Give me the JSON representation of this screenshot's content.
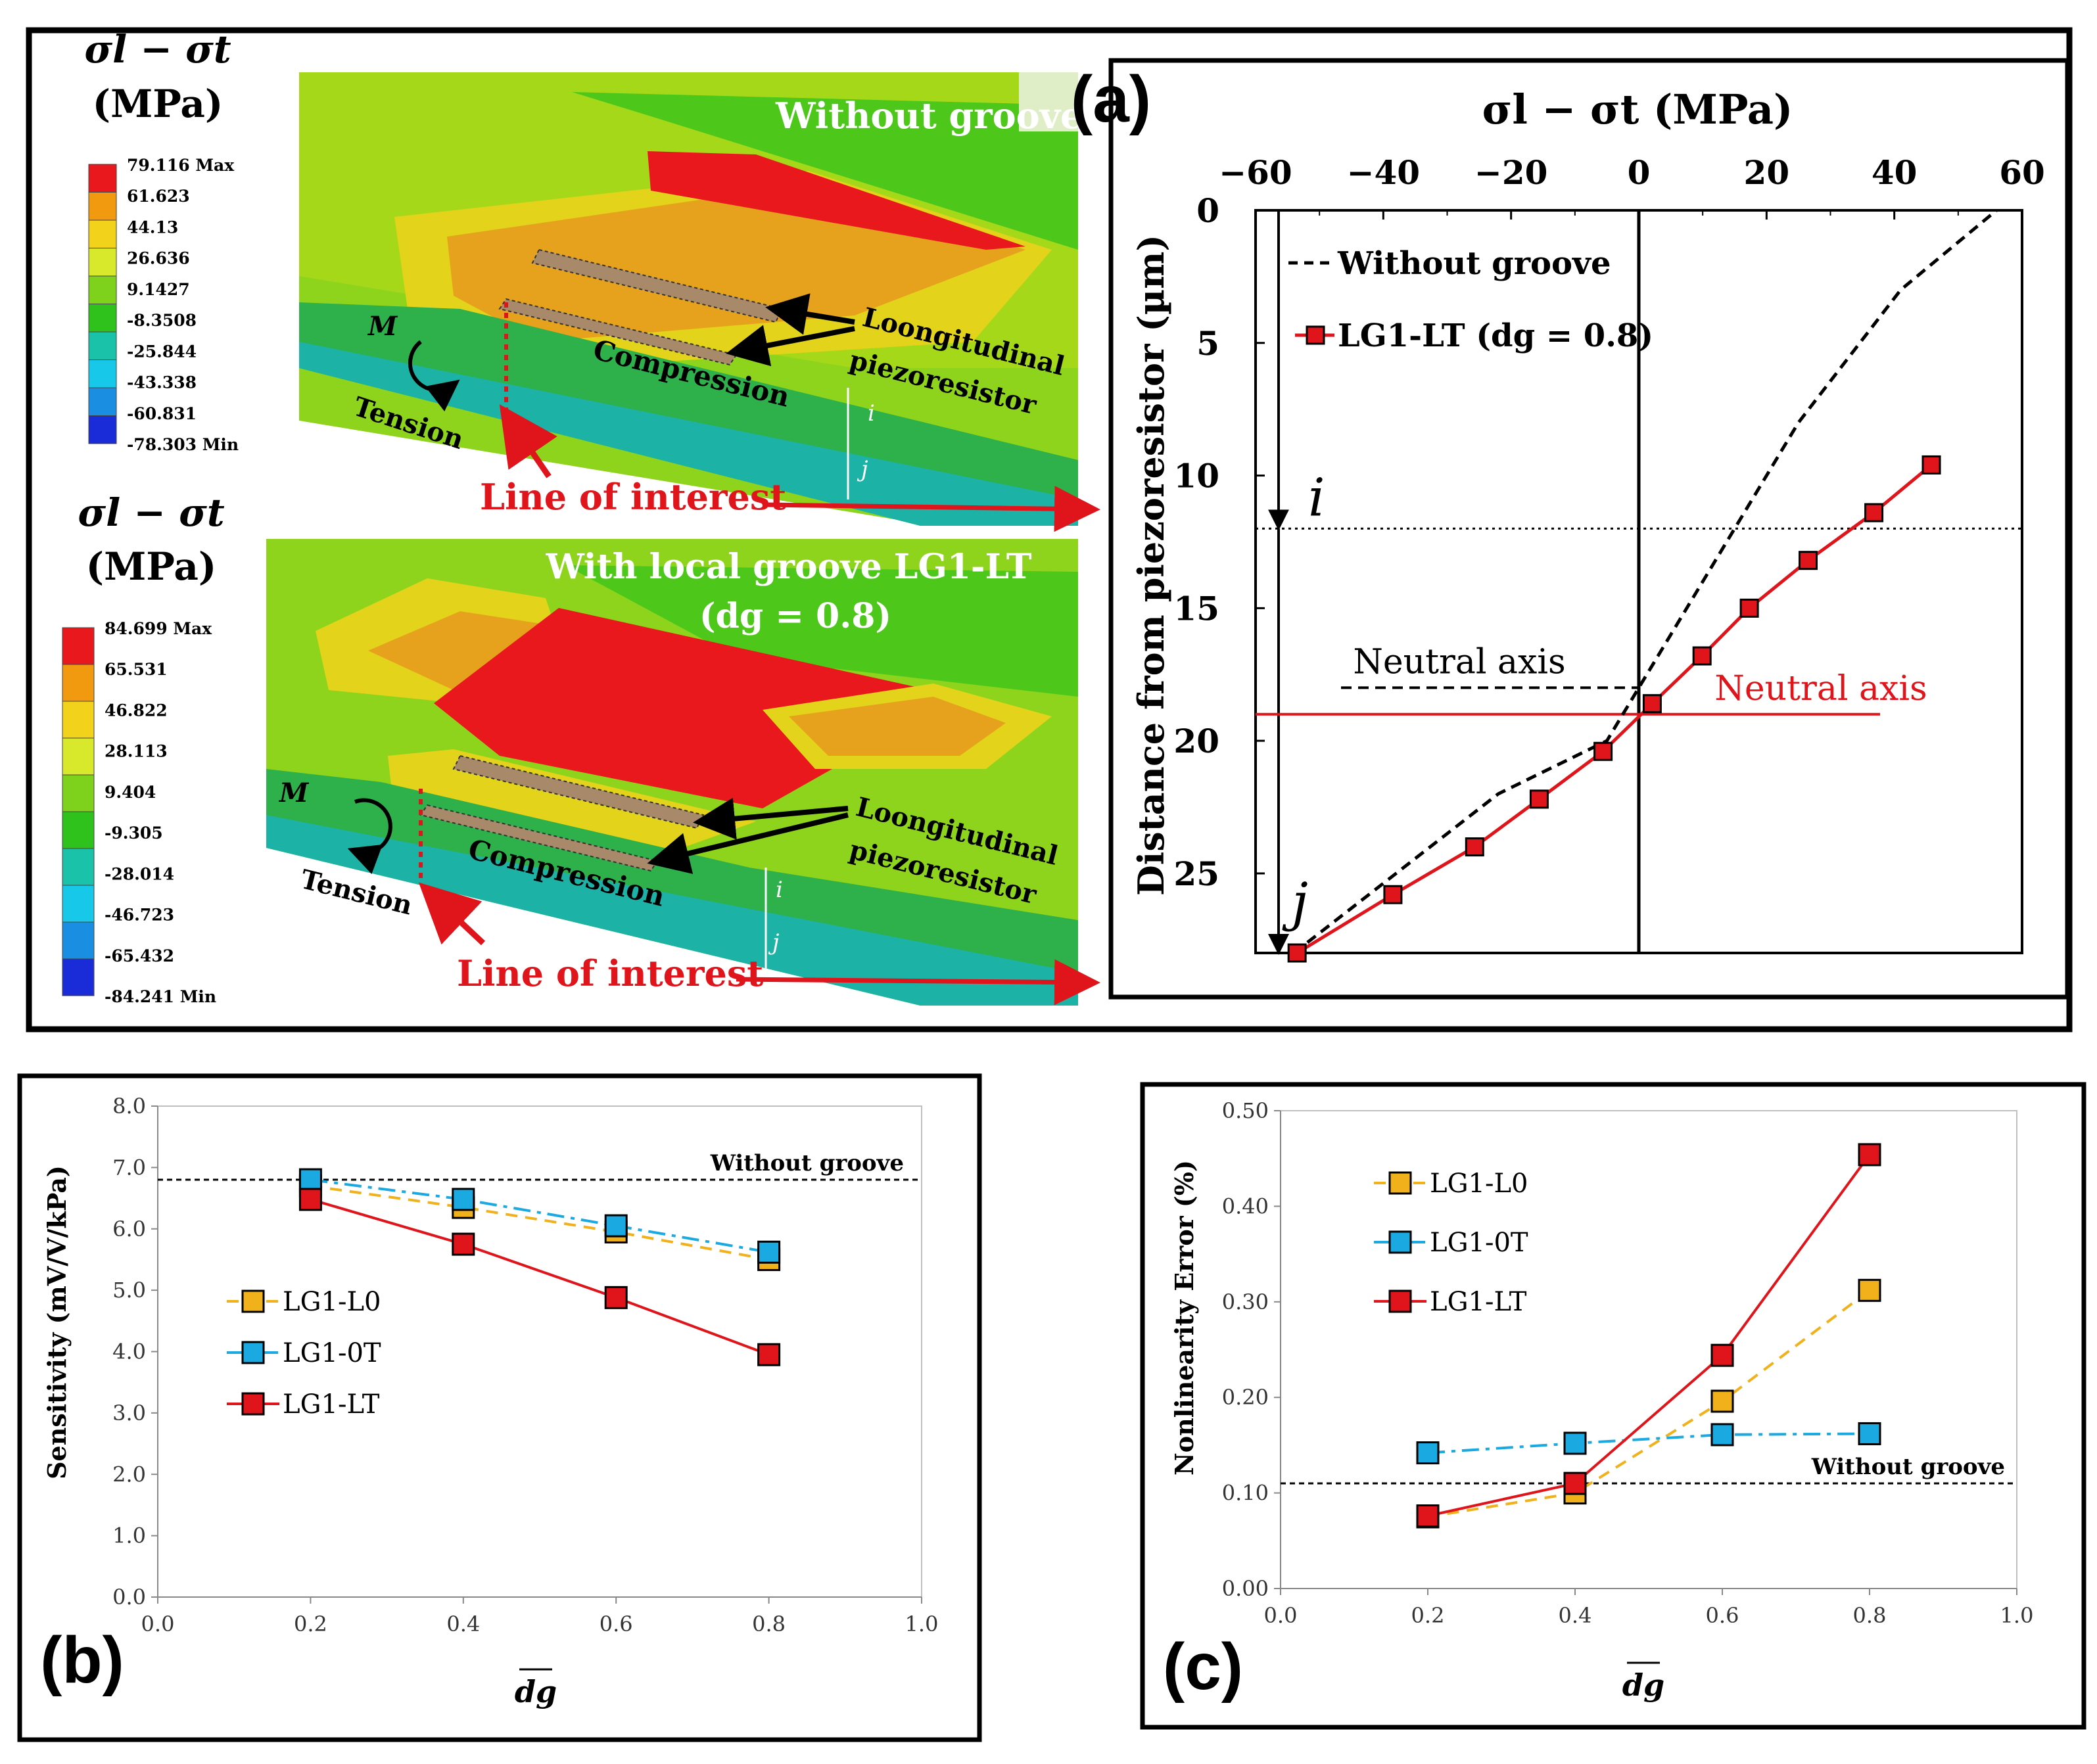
{
  "panel_labels": {
    "a": "(a)",
    "b": "(b)",
    "c": "(c)"
  },
  "fem": {
    "top": {
      "legend_title": [
        "σl − σt",
        "(MPa)"
      ],
      "legend_values": [
        "79.116 Max",
        "61.623",
        "44.13",
        "26.636",
        "9.1427",
        "-8.3508",
        "-25.844",
        "-43.338",
        "-60.831",
        "-78.303 Min"
      ],
      "title": "Without groove",
      "moment_label": "M",
      "compression_label": "Compression",
      "tension_label": "Tension",
      "piezo_label": [
        "Loongitudinal",
        "piezoresistor"
      ],
      "line_of_interest": "Line of interest",
      "point_i": "i",
      "point_j": "j"
    },
    "bottom": {
      "legend_title": [
        "σl − σt",
        "(MPa)"
      ],
      "legend_values": [
        "84.699 Max",
        "65.531",
        "46.822",
        "28.113",
        "9.404",
        "-9.305",
        "-28.014",
        "-46.723",
        "-65.432",
        "-84.241 Min"
      ],
      "title": [
        "With local groove LG1-LT",
        "(dg = 0.8)"
      ],
      "moment_label": "M",
      "compression_label": "Compression",
      "tension_label": "Tension",
      "piezo_label": [
        "Loongitudinal",
        "piezoresistor"
      ],
      "line_of_interest": "Line of interest",
      "point_i": "i",
      "point_j": "j"
    },
    "legend_colors": [
      "#e8181c",
      "#f29a0f",
      "#f2d21b",
      "#d8e82a",
      "#7fd21b",
      "#2fc21c",
      "#19c2a8",
      "#17c8e8",
      "#1a8ee0",
      "#1a2bd8"
    ]
  },
  "chart_data": [
    {
      "id": "a",
      "type": "line",
      "title": "",
      "xlabel": "σl − σt (MPa)",
      "ylabel": "Distance from piezoresistor (µm)",
      "xlim": [
        -60,
        60
      ],
      "ylim": [
        0,
        28
      ],
      "y_inverted": true,
      "x_axis_position": "top",
      "xticks": [
        -60,
        -40,
        -20,
        0,
        20,
        40,
        60
      ],
      "yticks": [
        0,
        5,
        10,
        15,
        20,
        25
      ],
      "series": [
        {
          "name": "Without groove",
          "style": "dashed",
          "color": "#000000",
          "x": [
            -54,
            -38,
            -22,
            -5,
            0,
            10,
            25,
            41,
            56
          ],
          "y": [
            28,
            25,
            22,
            20,
            18,
            14,
            8,
            3,
            0
          ]
        },
        {
          "name": "LG1-LT (dg = 0.8)",
          "style": "solid-square",
          "color": "#e0141b",
          "x": [
            -53.5,
            -38.5,
            -25.7,
            -15.6,
            -5.6,
            2.1,
            9.9,
            17.3,
            26.5,
            36.8,
            45.8
          ],
          "y": [
            28.0,
            25.8,
            24.0,
            22.2,
            20.4,
            18.6,
            16.8,
            15.0,
            13.2,
            11.4,
            9.6
          ]
        }
      ],
      "annotations": {
        "i_label": "i",
        "i_depth": 12,
        "j_label": "j",
        "j_depth": 28,
        "neutral_axis_without": {
          "label": "Neutral axis",
          "depth": 18
        },
        "neutral_axis_groove": {
          "label": "Neutral axis",
          "depth": 19
        }
      }
    },
    {
      "id": "b",
      "type": "line",
      "xlabel": "dg",
      "ylabel": "Sensitivity (mV/V/kPa)",
      "xlim": [
        0,
        1
      ],
      "ylim": [
        0,
        8
      ],
      "xticks": [
        "0.0",
        "0.2",
        "0.4",
        "0.6",
        "0.8",
        "1.0"
      ],
      "yticks": [
        "0.0",
        "1.0",
        "2.0",
        "3.0",
        "4.0",
        "5.0",
        "6.0",
        "7.0",
        "8.0"
      ],
      "reference": {
        "label": "Without groove",
        "value": 6.8
      },
      "x": [
        0.2,
        0.4,
        0.6,
        0.8
      ],
      "series": [
        {
          "name": "LG1-L0",
          "color": "#f0b11b",
          "style": "dashed",
          "values": [
            6.7,
            6.35,
            5.95,
            5.5
          ]
        },
        {
          "name": "LG1-0T",
          "color": "#1aa9e0",
          "style": "dashdot",
          "values": [
            6.8,
            6.48,
            6.05,
            5.62
          ]
        },
        {
          "name": "LG1-LT",
          "color": "#e0141b",
          "style": "solid",
          "values": [
            6.48,
            5.75,
            4.88,
            3.95
          ]
        }
      ]
    },
    {
      "id": "c",
      "type": "line",
      "xlabel": "dg",
      "ylabel": "Nonlinearity Error (%)",
      "xlim": [
        0,
        1
      ],
      "ylim": [
        0,
        0.5
      ],
      "xticks": [
        "0.0",
        "0.2",
        "0.4",
        "0.6",
        "0.8",
        "1.0"
      ],
      "yticks": [
        "0.00",
        "0.10",
        "0.20",
        "0.30",
        "0.40",
        "0.50"
      ],
      "reference": {
        "label": "Without groove",
        "value": 0.11
      },
      "x": [
        0.2,
        0.4,
        0.6,
        0.8
      ],
      "series": [
        {
          "name": "LG1-L0",
          "color": "#f0b11b",
          "style": "dashed",
          "values": [
            0.075,
            0.1,
            0.196,
            0.312
          ]
        },
        {
          "name": "LG1-0T",
          "color": "#1aa9e0",
          "style": "dashdot",
          "values": [
            0.142,
            0.152,
            0.161,
            0.162
          ]
        },
        {
          "name": "LG1-LT",
          "color": "#e0141b",
          "style": "solid",
          "values": [
            0.076,
            0.11,
            0.244,
            0.454
          ]
        }
      ]
    }
  ]
}
